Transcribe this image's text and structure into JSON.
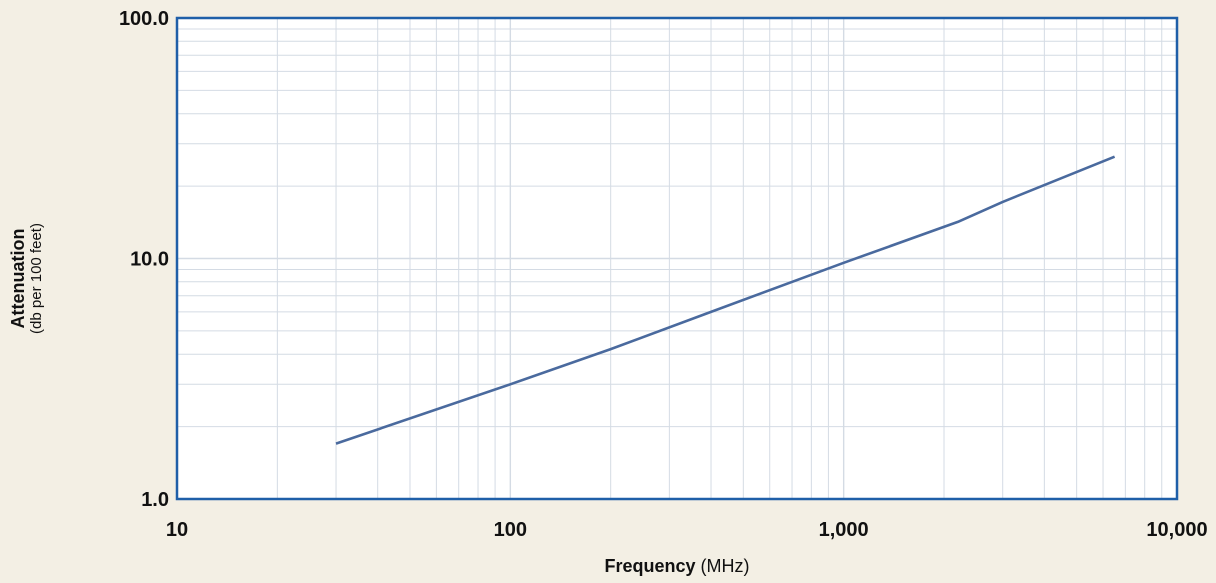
{
  "chart_data": {
    "type": "line",
    "title": "",
    "xlabel": {
      "main": "Frequency",
      "unit": "(MHz)"
    },
    "ylabel": {
      "main": "Attenuation",
      "unit": "(db per 100 feet)"
    },
    "xscale": "log",
    "yscale": "log",
    "xlim": [
      10,
      10000
    ],
    "ylim": [
      1,
      100
    ],
    "xticks": [
      10,
      100,
      1000,
      10000
    ],
    "xtick_labels": [
      "10",
      "100",
      "1,000",
      "10,000"
    ],
    "yticks": [
      1,
      10,
      100
    ],
    "ytick_labels": [
      "1.0",
      "10.0",
      "100.0"
    ],
    "grid": true,
    "legend": "none",
    "series": [
      {
        "x": [
          30,
          100,
          200,
          400,
          1000,
          2200,
          3000,
          6500
        ],
        "y": [
          1.7,
          3.0,
          4.2,
          6.0,
          9.6,
          14.2,
          17.2,
          26.5
        ]
      }
    ],
    "colors": {
      "background": "#f3efe4",
      "plot_area": "#ffffff",
      "frame": "#1f5fa8",
      "grid": "#d4dbe4",
      "line": "#4a6a9e"
    }
  }
}
